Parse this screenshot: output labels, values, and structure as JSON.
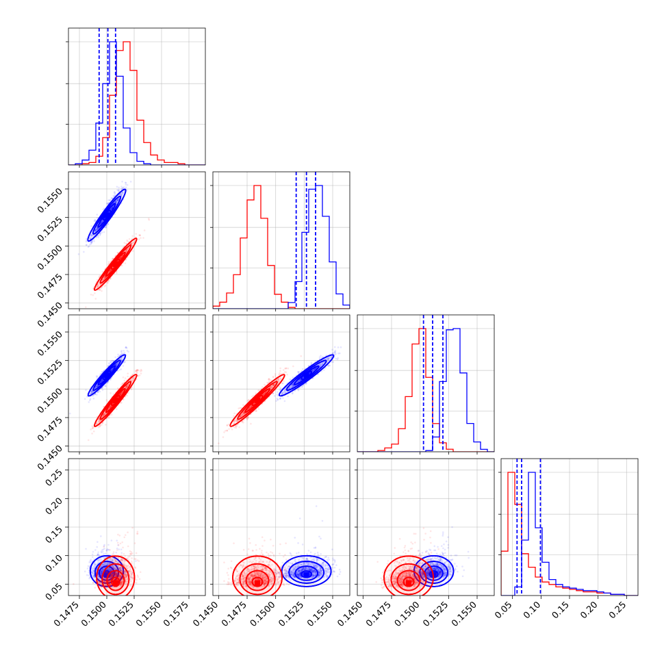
{
  "chart_data": {
    "type": "corner",
    "n_params": 4,
    "series": [
      {
        "color": "#0000ff",
        "mean": [
          0.15,
          0.1527,
          0.1512,
          0.066
        ],
        "sd": [
          0.0007,
          0.001,
          0.0008,
          0.025
        ]
      },
      {
        "color": "#ff0000",
        "mean": [
          0.1508,
          0.1484,
          0.149,
          0.052
        ],
        "sd": [
          0.0008,
          0.001,
          0.001,
          0.035
        ]
      }
    ],
    "quantile_lines": {
      "color": "#0000ff",
      "values": [
        [
          0.1493,
          0.1501,
          0.1508
        ],
        [
          0.1518,
          0.1527,
          0.1535
        ],
        [
          0.1503,
          0.1511,
          0.152
        ],
        [
          0.058,
          0.066,
          0.099
        ]
      ]
    },
    "axes": [
      {
        "range": [
          0.1465,
          0.159
        ],
        "ticks": [
          0.1475,
          0.15,
          0.1525,
          0.155,
          0.1575
        ],
        "tick_labels": [
          "0.1475",
          "0.1500",
          "0.1525",
          "0.1550",
          "0.1575"
        ]
      },
      {
        "range": [
          0.1445,
          0.1565
        ],
        "ticks": [
          0.145,
          0.1475,
          0.15,
          0.1525,
          0.155
        ],
        "tick_labels": [
          "0.1450",
          "0.1475",
          "0.1500",
          "0.1525",
          "0.1550"
        ]
      },
      {
        "range": [
          0.1445,
          0.1565
        ],
        "ticks": [
          0.145,
          0.1475,
          0.15,
          0.1525,
          0.155
        ],
        "tick_labels": [
          "0.1450",
          "0.1475",
          "0.1500",
          "0.1525",
          "0.1550"
        ]
      },
      {
        "range": [
          0.03,
          0.27
        ],
        "ticks": [
          0.05,
          0.1,
          0.15,
          0.2,
          0.25
        ],
        "tick_labels": [
          "0.05",
          "0.10",
          "0.15",
          "0.20",
          "0.25"
        ]
      }
    ],
    "histograms": [
      {
        "bins": [
          0.1465,
          0.159
        ],
        "blue": [
          0,
          1,
          4,
          12,
          34,
          66,
          100,
          72,
          30,
          10,
          3,
          1,
          0,
          0,
          0,
          0,
          0,
          0,
          0,
          0
        ],
        "red": [
          0,
          0,
          1,
          2,
          7,
          22,
          56,
          92,
          99,
          76,
          36,
          18,
          8,
          4,
          2,
          2,
          1,
          0,
          0,
          0
        ]
      },
      {
        "bins": [
          0.1445,
          0.1565
        ],
        "blue": [
          0,
          0,
          0,
          0,
          0,
          0,
          0,
          0,
          0,
          0,
          0,
          5,
          22,
          62,
          97,
          100,
          75,
          38,
          12,
          3
        ],
        "red": [
          2,
          5,
          12,
          26,
          54,
          83,
          94,
          69,
          33,
          11,
          5,
          1,
          0,
          0,
          0,
          0,
          0,
          0,
          0,
          0
        ]
      },
      {
        "bins": [
          0.1445,
          0.1565
        ],
        "blue": [
          0,
          0,
          0,
          0,
          0,
          0,
          0,
          0,
          0,
          0,
          1,
          12,
          57,
          99,
          100,
          64,
          23,
          8,
          2,
          0
        ],
        "red": [
          0,
          0,
          0,
          1,
          3,
          6,
          18,
          43,
          84,
          96,
          58,
          22,
          7,
          2,
          0,
          0,
          0,
          0,
          0,
          0
        ]
      },
      {
        "bins": [
          0.03,
          0.27
        ],
        "blue": [
          0,
          0,
          7,
          45,
          100,
          55,
          27,
          13,
          9,
          7,
          6,
          5,
          4,
          4,
          3,
          2,
          1,
          1,
          0,
          0
        ],
        "red": [
          36,
          100,
          74,
          34,
          23,
          15,
          11,
          9,
          7,
          6,
          5,
          4,
          3,
          3,
          2,
          2,
          1,
          1,
          0,
          0
        ]
      }
    ],
    "correlations": {
      "blue": {
        "1-0": 0.93,
        "2-0": 0.93,
        "2-1": 0.93,
        "3-0": 0.05,
        "3-1": 0.2,
        "3-2": 0.25
      },
      "red": {
        "1-0": 0.95,
        "2-0": 0.95,
        "2-1": 0.95,
        "3-0": 0.4,
        "3-1": 0.15,
        "3-2": 0.3
      }
    },
    "grid": true,
    "legend": "none"
  }
}
